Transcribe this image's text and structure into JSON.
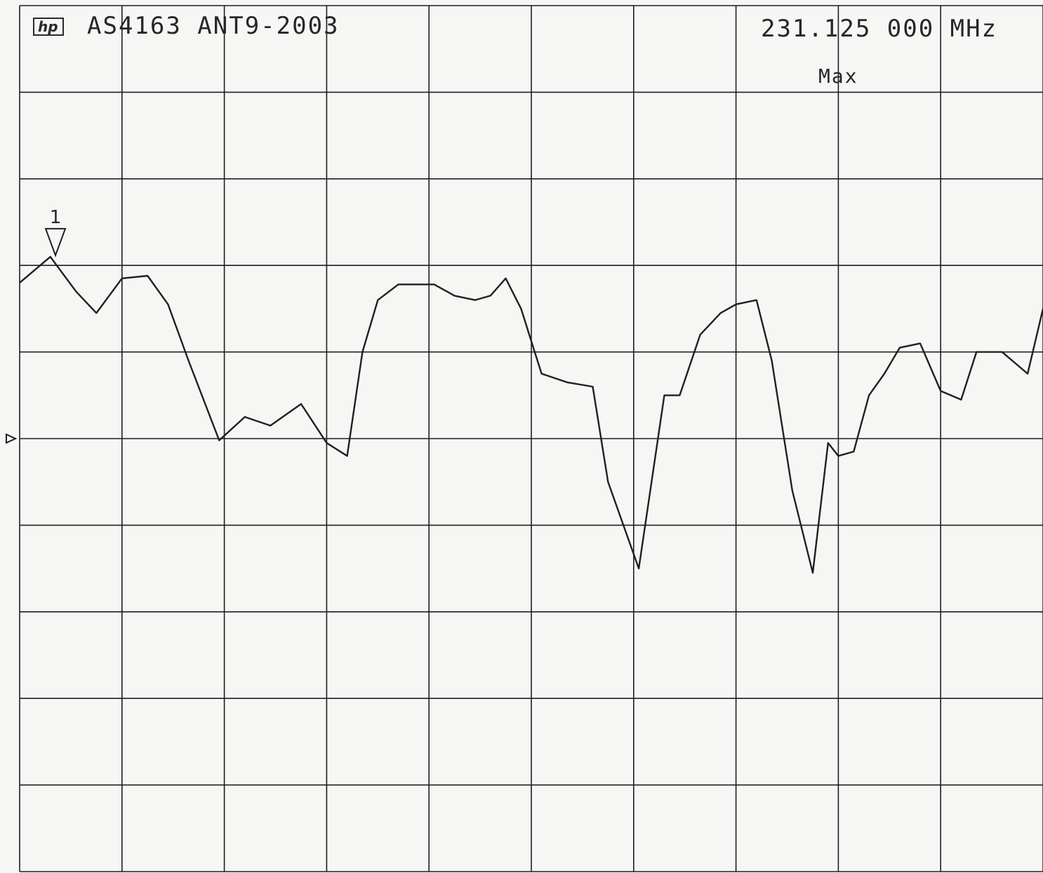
{
  "header": {
    "logo_text": "hp",
    "title": "AS4163 ANT9-2003",
    "frequency": "231.125 000 MHz",
    "trace_mode": "Max"
  },
  "marker": {
    "label": "1"
  },
  "colors": {
    "paper": "#f6f6f4",
    "ink": "#202020"
  },
  "chart_data": {
    "type": "line",
    "title": "",
    "xlabel": "",
    "ylabel": "",
    "grid": true,
    "x_divisions": 10,
    "y_divisions": 10,
    "xlim": [
      0,
      10
    ],
    "ylim": [
      0,
      10
    ],
    "series": [
      {
        "x": [
          0.0,
          0.3,
          0.55,
          0.75,
          1.0,
          1.25,
          1.45,
          1.65,
          1.95,
          2.2,
          2.45,
          2.75,
          3.0,
          3.2,
          3.35,
          3.5,
          3.7,
          3.85,
          4.05,
          4.25,
          4.45,
          4.6,
          4.75,
          4.9,
          5.1,
          5.35,
          5.6,
          5.75,
          6.05,
          6.3,
          6.45,
          6.65,
          6.85,
          7.0,
          7.2,
          7.35,
          7.55,
          7.75,
          7.9,
          8.0,
          8.15,
          8.3,
          8.45,
          8.6,
          8.8,
          9.0,
          9.2,
          9.35,
          9.6,
          9.85,
          10.0
        ],
        "y": [
          6.8,
          7.1,
          6.7,
          6.45,
          6.85,
          6.88,
          6.55,
          5.9,
          4.98,
          5.25,
          5.15,
          5.4,
          4.95,
          4.8,
          6.0,
          6.6,
          6.78,
          6.78,
          6.78,
          6.65,
          6.6,
          6.65,
          6.85,
          6.5,
          5.75,
          5.65,
          5.6,
          4.5,
          3.5,
          5.5,
          5.5,
          6.2,
          6.45,
          6.55,
          6.6,
          5.9,
          4.4,
          3.45,
          4.95,
          4.8,
          4.85,
          5.5,
          5.75,
          6.05,
          6.1,
          5.55,
          5.45,
          6.0,
          6.0,
          5.75,
          6.5
        ]
      }
    ],
    "marker": {
      "x": 0.35,
      "y": 7.1,
      "label": "1"
    },
    "reference_level_y": 5.0
  }
}
